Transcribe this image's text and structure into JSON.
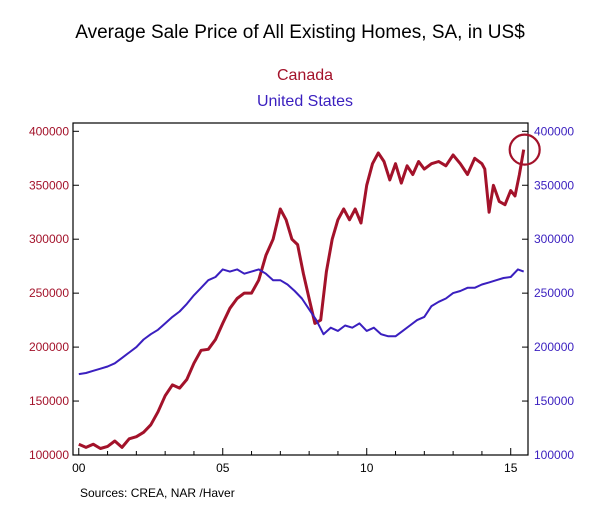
{
  "chart_data": {
    "type": "line",
    "title": "Average Sale Price of All Existing Homes, SA, in US$",
    "source": "Sources:  CREA, NAR /Haver",
    "x_tick_labels": [
      "00",
      "05",
      "10",
      "15"
    ],
    "x_tick_years": [
      2000,
      2005,
      2010,
      2015
    ],
    "xlim": [
      1999.8,
      2015.6
    ],
    "ylim_left": [
      100000,
      400000
    ],
    "ylim_right": [
      100000,
      400000
    ],
    "y_ticks": [
      100000,
      150000,
      200000,
      250000,
      300000,
      350000,
      400000
    ],
    "y_tick_labels": [
      "100000",
      "150000",
      "200000",
      "250000",
      "300000",
      "350000",
      "400000"
    ],
    "colors": {
      "canada": "#a3122a",
      "us": "#3a1fbf",
      "axis": "#000000"
    },
    "series": [
      {
        "name": "Canada",
        "axis": "left",
        "x": [
          2000.0,
          2000.25,
          2000.5,
          2000.75,
          2001.0,
          2001.25,
          2001.5,
          2001.75,
          2002.0,
          2002.25,
          2002.5,
          2002.75,
          2003.0,
          2003.25,
          2003.5,
          2003.75,
          2004.0,
          2004.25,
          2004.5,
          2004.75,
          2005.0,
          2005.25,
          2005.5,
          2005.75,
          2006.0,
          2006.25,
          2006.5,
          2006.75,
          2007.0,
          2007.2,
          2007.4,
          2007.6,
          2007.8,
          2008.0,
          2008.2,
          2008.4,
          2008.6,
          2008.8,
          2009.0,
          2009.2,
          2009.4,
          2009.6,
          2009.8,
          2010.0,
          2010.2,
          2010.4,
          2010.6,
          2010.8,
          2011.0,
          2011.2,
          2011.4,
          2011.6,
          2011.8,
          2012.0,
          2012.25,
          2012.5,
          2012.75,
          2013.0,
          2013.25,
          2013.5,
          2013.75,
          2014.0,
          2014.1,
          2014.25,
          2014.4,
          2014.6,
          2014.8,
          2015.0,
          2015.15,
          2015.3,
          2015.45
        ],
        "values": [
          110000,
          107000,
          110000,
          106000,
          108000,
          113000,
          107000,
          115000,
          117000,
          121000,
          128000,
          140000,
          155000,
          165000,
          162000,
          170000,
          185000,
          197000,
          198000,
          207000,
          222000,
          236000,
          245000,
          250000,
          250000,
          262000,
          285000,
          300000,
          328000,
          318000,
          300000,
          295000,
          268000,
          245000,
          222000,
          225000,
          270000,
          300000,
          318000,
          328000,
          318000,
          328000,
          315000,
          350000,
          370000,
          380000,
          372000,
          355000,
          370000,
          352000,
          368000,
          360000,
          372000,
          365000,
          370000,
          372000,
          368000,
          378000,
          370000,
          360000,
          375000,
          370000,
          365000,
          325000,
          350000,
          335000,
          332000,
          345000,
          340000,
          360000,
          383000
        ]
      },
      {
        "name": "United States",
        "axis": "right",
        "x": [
          2000.0,
          2000.25,
          2000.5,
          2000.75,
          2001.0,
          2001.25,
          2001.5,
          2001.75,
          2002.0,
          2002.25,
          2002.5,
          2002.75,
          2003.0,
          2003.25,
          2003.5,
          2003.75,
          2004.0,
          2004.25,
          2004.5,
          2004.75,
          2005.0,
          2005.25,
          2005.5,
          2005.75,
          2006.0,
          2006.25,
          2006.5,
          2006.75,
          2007.0,
          2007.25,
          2007.5,
          2007.75,
          2008.0,
          2008.25,
          2008.5,
          2008.75,
          2009.0,
          2009.25,
          2009.5,
          2009.75,
          2010.0,
          2010.25,
          2010.5,
          2010.75,
          2011.0,
          2011.25,
          2011.5,
          2011.75,
          2012.0,
          2012.25,
          2012.5,
          2012.75,
          2013.0,
          2013.25,
          2013.5,
          2013.75,
          2014.0,
          2014.25,
          2014.5,
          2014.75,
          2015.0,
          2015.25,
          2015.45
        ],
        "values": [
          175000,
          176000,
          178000,
          180000,
          182000,
          185000,
          190000,
          195000,
          200000,
          207000,
          212000,
          216000,
          222000,
          228000,
          233000,
          240000,
          248000,
          255000,
          262000,
          265000,
          272000,
          270000,
          272000,
          268000,
          270000,
          272000,
          268000,
          262000,
          262000,
          258000,
          252000,
          245000,
          235000,
          225000,
          212000,
          218000,
          215000,
          220000,
          218000,
          222000,
          215000,
          218000,
          212000,
          210000,
          210000,
          215000,
          220000,
          225000,
          228000,
          238000,
          242000,
          245000,
          250000,
          252000,
          255000,
          255000,
          258000,
          260000,
          262000,
          264000,
          265000,
          272000,
          270000
        ]
      }
    ],
    "annotation": {
      "type": "circle",
      "at_x": 2015.45,
      "at_y": 383000,
      "note": "highlights latest Canada value"
    }
  }
}
